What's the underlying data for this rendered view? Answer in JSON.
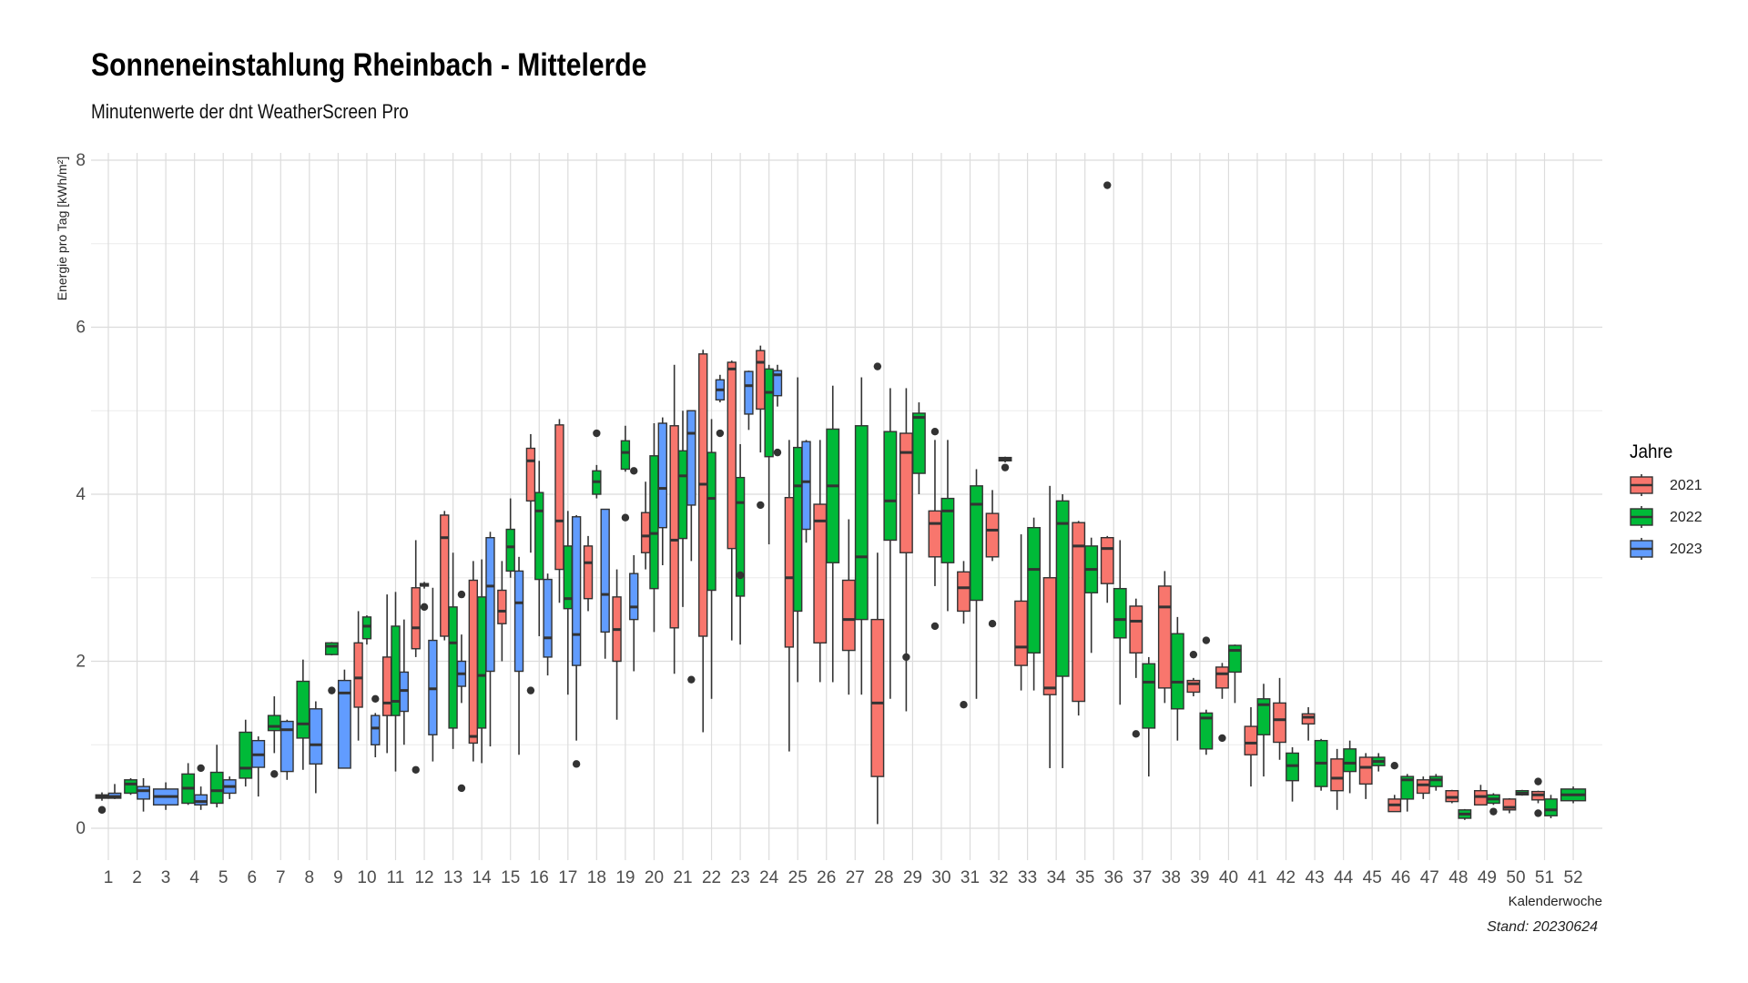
{
  "title": "Sonneneinstahlung Rheinbach - Mittelerde",
  "subtitle": "Minutenwerte der dnt WeatherScreen Pro",
  "caption": "Stand: 20230624",
  "legend": {
    "title": "Jahre",
    "items": [
      {
        "name": "2021",
        "color": "#F8766D"
      },
      {
        "name": "2022",
        "color": "#00BA38"
      },
      {
        "name": "2023",
        "color": "#619CFF"
      }
    ]
  },
  "chart_data": {
    "type": "boxplot",
    "xlabel": "Kalenderwoche",
    "ylabel": "Energie pro Tag [kWh/m²]",
    "ylim": [
      -0.1,
      8
    ],
    "yticks": [
      0,
      2,
      4,
      6,
      8
    ],
    "categories": [
      "1",
      "2",
      "3",
      "4",
      "5",
      "6",
      "7",
      "8",
      "9",
      "10",
      "11",
      "12",
      "13",
      "14",
      "15",
      "16",
      "17",
      "18",
      "19",
      "20",
      "21",
      "22",
      "23",
      "24",
      "25",
      "26",
      "27",
      "28",
      "29",
      "30",
      "31",
      "32",
      "33",
      "34",
      "35",
      "36",
      "37",
      "38",
      "39",
      "40",
      "41",
      "42",
      "43",
      "44",
      "45",
      "46",
      "47",
      "48",
      "49",
      "50",
      "51",
      "52"
    ],
    "grid": true,
    "legend_position": "right",
    "series": [
      {
        "name": "2021",
        "color": "#F8766D",
        "boxes": [
          [
            1,
            0.33,
            0.36,
            0.38,
            0.4,
            0.43,
            [
              0.22,
              0.22
            ]
          ],
          [
            10,
            1.05,
            1.45,
            1.8,
            2.22,
            2.6,
            []
          ],
          [
            11,
            0.9,
            1.35,
            1.5,
            2.05,
            2.8,
            []
          ],
          [
            12,
            2.05,
            2.15,
            2.4,
            2.88,
            3.45,
            [
              0.7
            ]
          ],
          [
            13,
            2.25,
            2.3,
            3.48,
            3.75,
            3.8,
            []
          ],
          [
            14,
            0.8,
            1.02,
            1.1,
            2.97,
            3.2,
            []
          ],
          [
            15,
            2.0,
            2.45,
            2.6,
            2.85,
            3.2,
            []
          ],
          [
            16,
            3.3,
            3.92,
            4.4,
            4.55,
            4.72,
            [
              1.65
            ]
          ],
          [
            17,
            2.7,
            3.1,
            3.68,
            4.83,
            4.9,
            []
          ],
          [
            18,
            2.6,
            2.75,
            3.18,
            3.38,
            3.5,
            []
          ],
          [
            19,
            1.3,
            2.0,
            2.38,
            2.77,
            3.1,
            []
          ],
          [
            20,
            3.1,
            3.3,
            3.5,
            3.78,
            4.15,
            []
          ],
          [
            21,
            1.85,
            2.4,
            3.45,
            4.82,
            5.55,
            []
          ],
          [
            22,
            1.15,
            2.3,
            4.12,
            5.68,
            5.73,
            []
          ],
          [
            23,
            2.25,
            3.35,
            5.5,
            5.58,
            5.6,
            []
          ],
          [
            24,
            4.5,
            5.02,
            5.58,
            5.72,
            5.78,
            [
              3.87
            ]
          ],
          [
            25,
            0.92,
            2.17,
            3.0,
            3.96,
            4.65,
            []
          ],
          [
            26,
            1.75,
            2.22,
            3.68,
            3.88,
            4.65,
            []
          ],
          [
            27,
            1.6,
            2.13,
            2.5,
            2.97,
            3.7,
            []
          ],
          [
            28,
            0.05,
            0.62,
            1.5,
            2.5,
            3.3,
            [
              5.53
            ]
          ],
          [
            29,
            1.4,
            3.3,
            4.5,
            4.73,
            5.27,
            [
              2.05
            ]
          ],
          [
            30,
            2.9,
            3.25,
            3.65,
            3.8,
            4.65,
            [
              4.75,
              2.42
            ]
          ],
          [
            31,
            2.45,
            2.6,
            2.88,
            3.07,
            3.2,
            [
              1.48
            ]
          ],
          [
            32,
            3.2,
            3.25,
            3.57,
            3.77,
            4.05,
            [
              2.45
            ]
          ],
          [
            33,
            1.65,
            1.95,
            2.17,
            2.72,
            3.52,
            []
          ],
          [
            34,
            0.72,
            1.6,
            1.68,
            3.0,
            4.1,
            []
          ],
          [
            35,
            1.35,
            1.52,
            3.38,
            3.66,
            3.68,
            []
          ],
          [
            36,
            2.7,
            2.93,
            3.35,
            3.48,
            3.5,
            [
              7.7
            ]
          ],
          [
            37,
            1.8,
            2.1,
            2.48,
            2.66,
            2.75,
            [
              1.13
            ]
          ],
          [
            38,
            1.5,
            1.68,
            2.65,
            2.9,
            3.08,
            []
          ],
          [
            39,
            1.58,
            1.63,
            1.73,
            1.77,
            1.8,
            [
              2.08
            ]
          ],
          [
            40,
            1.55,
            1.68,
            1.85,
            1.93,
            1.98,
            [
              1.08
            ]
          ],
          [
            41,
            0.5,
            0.88,
            1.02,
            1.22,
            1.45,
            []
          ],
          [
            42,
            0.82,
            1.03,
            1.3,
            1.5,
            1.8,
            []
          ],
          [
            43,
            1.05,
            1.25,
            1.33,
            1.37,
            1.45,
            []
          ],
          [
            44,
            0.22,
            0.45,
            0.6,
            0.83,
            0.95,
            []
          ],
          [
            45,
            0.35,
            0.53,
            0.73,
            0.85,
            0.9,
            []
          ],
          [
            46,
            0.22,
            0.2,
            0.28,
            0.35,
            0.4,
            [
              0.75
            ]
          ],
          [
            47,
            0.35,
            0.42,
            0.52,
            0.58,
            0.62,
            []
          ],
          [
            48,
            0.3,
            0.32,
            0.37,
            0.45,
            0.46,
            []
          ],
          [
            49,
            0.28,
            0.28,
            0.38,
            0.45,
            0.52,
            []
          ],
          [
            50,
            0.18,
            0.22,
            0.25,
            0.35,
            0.36,
            []
          ],
          [
            51,
            0.3,
            0.34,
            0.4,
            0.44,
            0.45,
            [
              0.56,
              0.18
            ]
          ]
        ]
      },
      {
        "name": "2022",
        "color": "#00BA38",
        "boxes": [
          [
            2,
            0.4,
            0.42,
            0.53,
            0.58,
            0.6,
            []
          ],
          [
            4,
            0.28,
            0.3,
            0.48,
            0.65,
            0.78,
            []
          ],
          [
            5,
            0.25,
            0.3,
            0.45,
            0.67,
            1.0,
            []
          ],
          [
            6,
            0.5,
            0.6,
            0.72,
            1.15,
            1.3,
            []
          ],
          [
            7,
            0.9,
            1.17,
            1.22,
            1.35,
            1.58,
            [
              0.65
            ]
          ],
          [
            8,
            0.7,
            1.08,
            1.25,
            1.76,
            2.02,
            []
          ],
          [
            9,
            2.07,
            2.08,
            2.18,
            2.22,
            2.23,
            [
              1.65
            ]
          ],
          [
            10,
            2.2,
            2.27,
            2.42,
            2.53,
            2.55,
            []
          ],
          [
            11,
            0.68,
            1.35,
            1.52,
            2.42,
            2.83,
            []
          ],
          [
            12,
            2.87,
            2.9,
            2.92,
            2.93,
            2.95,
            [
              2.65
            ]
          ],
          [
            13,
            0.95,
            1.2,
            2.22,
            2.65,
            3.3,
            []
          ],
          [
            14,
            0.78,
            1.2,
            1.83,
            2.77,
            3.22,
            []
          ],
          [
            15,
            3.0,
            3.08,
            3.37,
            3.58,
            3.95,
            []
          ],
          [
            16,
            2.3,
            2.98,
            3.8,
            4.02,
            4.4,
            []
          ],
          [
            17,
            1.6,
            2.63,
            2.75,
            3.38,
            3.8,
            []
          ],
          [
            18,
            3.95,
            4.0,
            4.15,
            4.28,
            4.35,
            [
              4.73
            ]
          ],
          [
            19,
            4.27,
            4.3,
            4.5,
            4.64,
            4.82,
            [
              3.72
            ]
          ],
          [
            20,
            2.35,
            2.87,
            3.53,
            4.46,
            4.85,
            []
          ],
          [
            21,
            2.65,
            3.47,
            4.22,
            4.52,
            5.0,
            []
          ],
          [
            22,
            1.55,
            2.85,
            3.95,
            4.5,
            4.9,
            []
          ],
          [
            23,
            2.2,
            2.78,
            3.9,
            4.2,
            4.6,
            [
              3.03
            ]
          ],
          [
            24,
            3.4,
            4.45,
            5.22,
            5.5,
            5.55,
            []
          ],
          [
            25,
            1.75,
            2.6,
            4.1,
            4.56,
            5.4,
            []
          ],
          [
            26,
            1.75,
            3.18,
            4.1,
            4.78,
            5.3,
            []
          ],
          [
            27,
            1.6,
            2.5,
            3.25,
            4.82,
            5.4,
            []
          ],
          [
            28,
            1.55,
            3.45,
            3.92,
            4.75,
            5.27,
            []
          ],
          [
            29,
            4.0,
            4.25,
            4.92,
            4.97,
            5.1,
            []
          ],
          [
            30,
            2.6,
            3.18,
            3.8,
            3.95,
            4.65,
            []
          ],
          [
            31,
            1.55,
            2.73,
            3.88,
            4.1,
            4.3,
            []
          ],
          [
            32,
            4.38,
            4.4,
            4.42,
            4.44,
            4.45,
            [
              4.32
            ]
          ],
          [
            33,
            1.65,
            2.1,
            3.1,
            3.6,
            3.72,
            []
          ],
          [
            34,
            0.72,
            1.82,
            3.65,
            3.92,
            4.0,
            []
          ],
          [
            35,
            2.1,
            2.82,
            3.1,
            3.38,
            3.48,
            []
          ],
          [
            36,
            1.48,
            2.28,
            2.5,
            2.87,
            3.45,
            []
          ],
          [
            37,
            0.62,
            1.2,
            1.75,
            1.97,
            2.05,
            []
          ],
          [
            38,
            1.05,
            1.43,
            1.75,
            2.33,
            2.53,
            []
          ],
          [
            39,
            0.88,
            0.95,
            1.32,
            1.38,
            1.42,
            [
              2.25
            ]
          ],
          [
            40,
            1.5,
            1.87,
            2.13,
            2.19,
            2.2,
            []
          ],
          [
            41,
            0.62,
            1.12,
            1.48,
            1.55,
            1.73,
            []
          ],
          [
            42,
            0.32,
            0.57,
            0.75,
            0.9,
            0.97,
            []
          ],
          [
            43,
            0.45,
            0.5,
            0.78,
            1.05,
            1.07,
            []
          ],
          [
            44,
            0.42,
            0.68,
            0.78,
            0.95,
            1.05,
            []
          ],
          [
            45,
            0.68,
            0.75,
            0.8,
            0.85,
            0.9,
            []
          ],
          [
            46,
            0.2,
            0.35,
            0.58,
            0.62,
            0.65,
            []
          ],
          [
            47,
            0.45,
            0.5,
            0.58,
            0.62,
            0.65,
            []
          ],
          [
            48,
            0.1,
            0.12,
            0.17,
            0.22,
            0.23,
            []
          ],
          [
            49,
            0.28,
            0.3,
            0.35,
            0.4,
            0.42,
            [
              0.2
            ]
          ],
          [
            50,
            0.39,
            0.4,
            0.42,
            0.45,
            0.46,
            []
          ],
          [
            51,
            0.12,
            0.15,
            0.22,
            0.35,
            0.4,
            []
          ],
          [
            52,
            0.3,
            0.33,
            0.4,
            0.47,
            0.5,
            []
          ]
        ]
      },
      {
        "name": "2023",
        "color": "#619CFF",
        "boxes": [
          [
            1,
            0.35,
            0.36,
            0.38,
            0.42,
            0.53,
            []
          ],
          [
            2,
            0.2,
            0.35,
            0.45,
            0.5,
            0.6,
            []
          ],
          [
            3,
            0.22,
            0.28,
            0.38,
            0.47,
            0.55,
            []
          ],
          [
            4,
            0.22,
            0.28,
            0.32,
            0.4,
            0.5,
            [
              0.72
            ]
          ],
          [
            5,
            0.35,
            0.42,
            0.5,
            0.58,
            0.62,
            []
          ],
          [
            6,
            0.38,
            0.73,
            0.88,
            1.05,
            1.1,
            []
          ],
          [
            7,
            0.58,
            0.68,
            1.18,
            1.28,
            1.3,
            []
          ],
          [
            8,
            0.42,
            0.77,
            1.0,
            1.43,
            1.52,
            []
          ],
          [
            9,
            0.72,
            0.72,
            1.62,
            1.77,
            1.9,
            []
          ],
          [
            10,
            0.85,
            1.0,
            1.2,
            1.35,
            1.38,
            [
              1.55
            ]
          ],
          [
            11,
            1.0,
            1.4,
            1.65,
            1.87,
            2.5,
            []
          ],
          [
            12,
            0.8,
            1.12,
            1.67,
            2.25,
            2.88,
            []
          ],
          [
            13,
            1.5,
            1.7,
            1.85,
            2.0,
            2.32,
            [
              2.8,
              0.48
            ]
          ],
          [
            14,
            0.98,
            1.88,
            2.9,
            3.48,
            3.55,
            []
          ],
          [
            15,
            0.88,
            1.88,
            2.7,
            3.08,
            3.25,
            []
          ],
          [
            16,
            1.83,
            2.05,
            2.28,
            2.98,
            3.05,
            []
          ],
          [
            17,
            1.05,
            1.95,
            2.32,
            3.73,
            3.75,
            [
              0.77
            ]
          ],
          [
            18,
            2.03,
            2.35,
            2.8,
            3.82,
            3.82,
            []
          ],
          [
            19,
            1.88,
            2.5,
            2.65,
            3.05,
            3.27,
            [
              4.28
            ]
          ],
          [
            20,
            3.15,
            3.6,
            4.07,
            4.85,
            4.92,
            []
          ],
          [
            21,
            3.2,
            3.87,
            4.73,
            5.0,
            5.0,
            [
              1.78
            ]
          ],
          [
            22,
            5.1,
            5.13,
            5.25,
            5.37,
            5.43,
            [
              4.73
            ]
          ],
          [
            23,
            4.77,
            4.96,
            5.3,
            5.47,
            5.48,
            []
          ],
          [
            24,
            5.05,
            5.18,
            5.43,
            5.48,
            5.55,
            [
              4.5
            ]
          ],
          [
            25,
            3.42,
            3.58,
            4.15,
            4.63,
            4.65,
            []
          ]
        ]
      }
    ]
  }
}
